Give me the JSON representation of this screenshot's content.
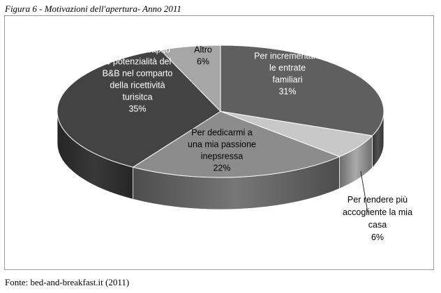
{
  "caption": "Figura 6 - Motivazioni dell'apertura- Anno 2011",
  "source": "Fonte: bed-and-breakfast.it (2011)",
  "chart_data": {
    "type": "pie",
    "title": "",
    "slices": [
      {
        "label_lines": [
          "Per incrementare",
          "le entrate",
          "familiari"
        ],
        "percent_label": "31%",
        "value": 31,
        "color": "#5f5f5f",
        "label_color": "#ffffff"
      },
      {
        "label_lines": [
          "Per rendere più",
          "accogliente la mia",
          "casa"
        ],
        "percent_label": "6%",
        "value": 6,
        "color": "#c8c8c8",
        "label_color": "#000000"
      },
      {
        "label_lines": [
          "Per dedicarmi a",
          "una mia passione",
          "inepsressa"
        ],
        "percent_label": "22%",
        "value": 22,
        "color": "#8c8c8c",
        "label_color": "#000000"
      },
      {
        "label_lines": [
          "Perché ho capito",
          "le potenzialità del",
          "B&B nel comparto",
          "della ricettività",
          "turisitca"
        ],
        "percent_label": "35%",
        "value": 35,
        "color": "#434343",
        "label_color": "#ffffff"
      },
      {
        "label_lines": [
          "Altro"
        ],
        "percent_label": "6%",
        "value": 6,
        "color": "#a6a6a6",
        "label_color": "#000000"
      }
    ]
  }
}
